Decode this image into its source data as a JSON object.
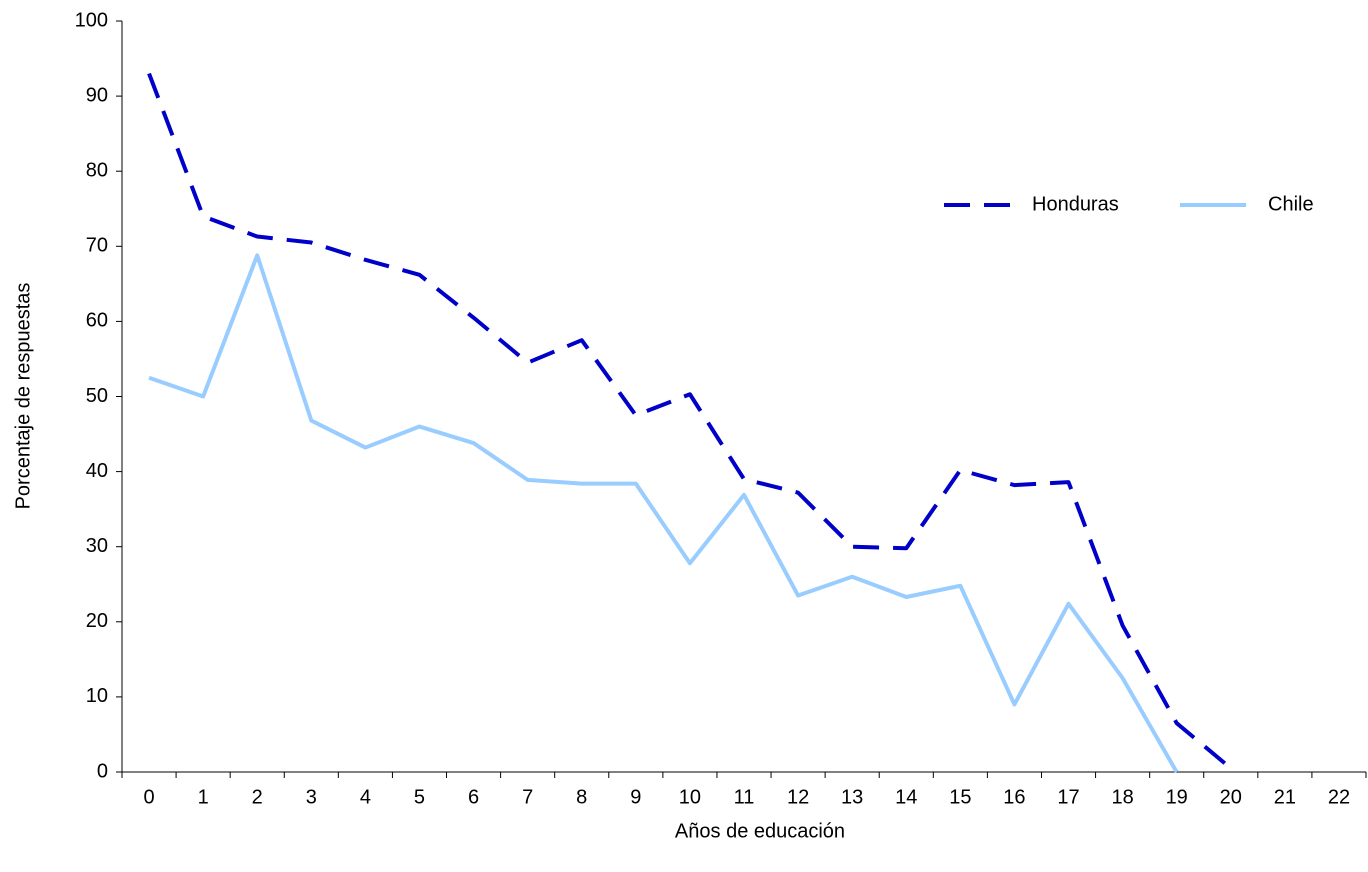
{
  "chart_data": {
    "type": "line",
    "xlabel": "Años de educación",
    "ylabel": "Porcentaje de respuestas",
    "categories": [
      "0",
      "1",
      "2",
      "3",
      "4",
      "5",
      "6",
      "7",
      "8",
      "9",
      "10",
      "11",
      "12",
      "13",
      "14",
      "15",
      "16",
      "17",
      "18",
      "19",
      "20",
      "21",
      "22"
    ],
    "series": [
      {
        "name": "Honduras",
        "color": "#0000c8",
        "style": "dashed",
        "values": [
          93,
          74,
          71.3,
          70.5,
          68.2,
          66.2,
          60.5,
          54.5,
          57.5,
          47.5,
          50.3,
          39,
          37.2,
          30,
          29.8,
          40.2,
          38.2,
          38.6,
          19.5,
          6.5,
          0.5,
          null,
          null
        ]
      },
      {
        "name": "Chile",
        "color": "#99ccff",
        "style": "solid",
        "values": [
          52.5,
          50,
          68.8,
          46.8,
          43.2,
          46,
          43.8,
          38.9,
          38.4,
          38.4,
          27.8,
          36.9,
          23.5,
          26,
          23.3,
          24.8,
          9,
          22.4,
          12.5,
          0,
          null,
          null,
          null
        ]
      }
    ],
    "ylim": [
      0,
      100
    ],
    "yticks": [
      0,
      10,
      20,
      30,
      40,
      50,
      60,
      70,
      80,
      90,
      100
    ],
    "grid": false,
    "legend": "upper right"
  }
}
